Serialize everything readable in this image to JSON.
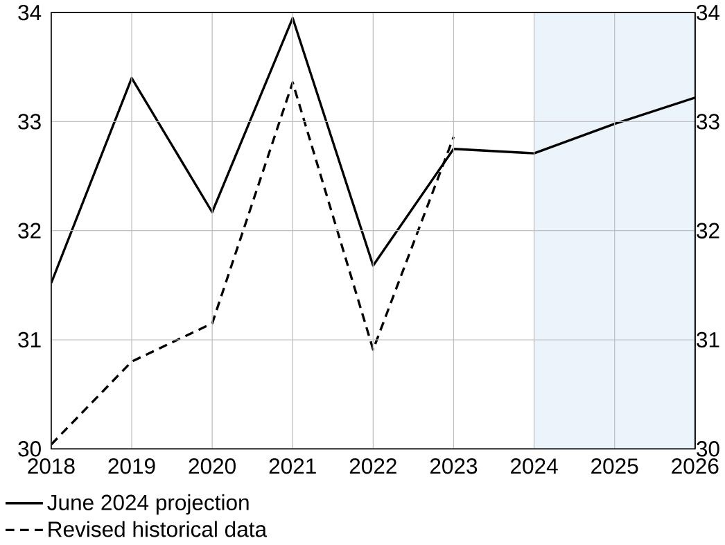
{
  "chart_data": {
    "type": "line",
    "x": [
      2018,
      2019,
      2020,
      2021,
      2022,
      2023,
      2024,
      2025,
      2026
    ],
    "series": [
      {
        "name": "June 2024 projection",
        "color": "#000000",
        "line_style": "solid",
        "values": [
          31.52,
          33.4,
          32.17,
          33.95,
          31.68,
          32.75,
          32.71,
          32.98,
          33.22
        ]
      },
      {
        "name": "Revised historical data",
        "color": "#000000",
        "line_style": "dashed",
        "values": [
          30.04,
          30.8,
          31.15,
          33.36,
          30.91,
          32.86,
          null,
          null,
          null
        ]
      }
    ],
    "xlim": [
      2018,
      2026
    ],
    "xticks": [
      2018,
      2019,
      2020,
      2021,
      2022,
      2023,
      2024,
      2025,
      2026
    ],
    "ylim": [
      30,
      34
    ],
    "yticks": [
      30,
      31,
      32,
      33,
      34
    ],
    "y2lim": [
      30,
      34
    ],
    "y2ticks": [
      30,
      31,
      32,
      33,
      34
    ],
    "bands": [
      {
        "axis": "x",
        "from": 2024,
        "to": 2026,
        "color": "#ebf3fb"
      }
    ],
    "grid": true,
    "legend": "bottom"
  }
}
